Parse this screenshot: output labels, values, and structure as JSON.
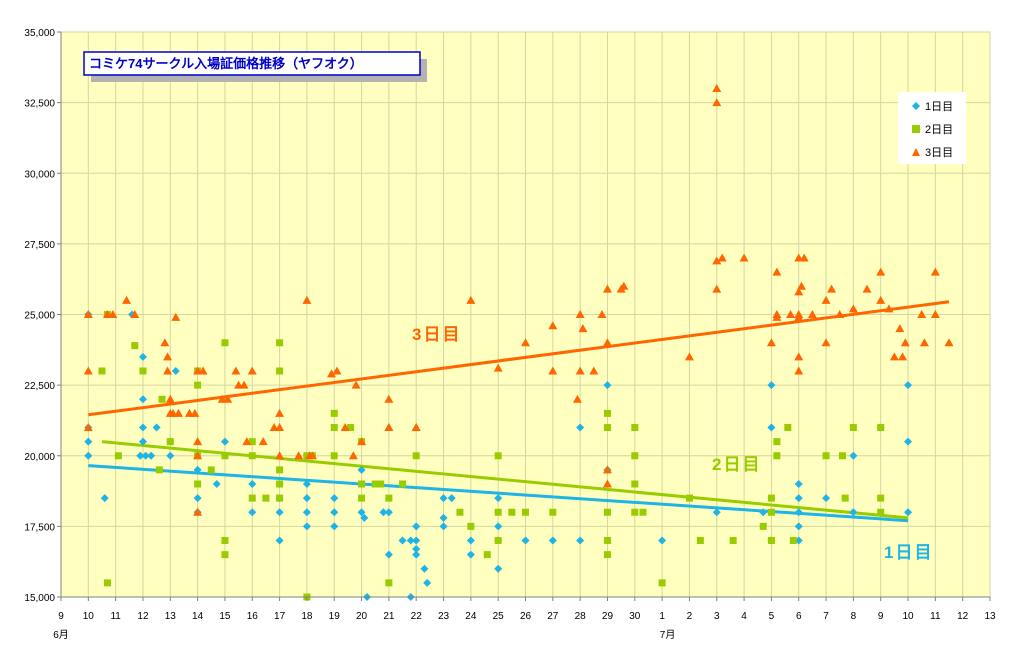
{
  "chart_data": {
    "type": "scatter",
    "title": "コミケ74サークル入場証価格推移（ヤフオク）",
    "ylim": [
      15000,
      35000
    ],
    "yticks": [
      15000,
      17500,
      20000,
      22500,
      25000,
      27500,
      30000,
      32500,
      35000
    ],
    "ytick_labels": [
      "15,000",
      "17,500",
      "20,000",
      "22,500",
      "25,000",
      "27,500",
      "30,000",
      "32,500",
      "35,000"
    ],
    "xlim": [
      0,
      34
    ],
    "xtick_labels": [
      "9",
      "10",
      "11",
      "12",
      "13",
      "14",
      "15",
      "16",
      "17",
      "18",
      "19",
      "20",
      "21",
      "22",
      "23",
      "24",
      "25",
      "26",
      "27",
      "28",
      "29",
      "30",
      "1",
      "2",
      "3",
      "4",
      "5",
      "6",
      "7",
      "8",
      "9",
      "10",
      "11",
      "12",
      "13"
    ],
    "month_labels": [
      {
        "label": "6月",
        "x": 0
      },
      {
        "label": "7月",
        "x": 22.2
      }
    ],
    "grid": true,
    "legend_position": "top-right",
    "series": [
      {
        "name": "1日目",
        "color": "#1EB4E6",
        "marker": "diamond",
        "points": [
          [
            1.0,
            25000
          ],
          [
            1.0,
            21000
          ],
          [
            1.0,
            20500
          ],
          [
            1.0,
            20000
          ],
          [
            1.6,
            18500
          ],
          [
            2.6,
            25000
          ],
          [
            3.0,
            23500
          ],
          [
            3.0,
            22000
          ],
          [
            3.0,
            21000
          ],
          [
            3.0,
            20500
          ],
          [
            2.9,
            20000
          ],
          [
            3.1,
            20000
          ],
          [
            3.3,
            20000
          ],
          [
            3.5,
            21000
          ],
          [
            4.2,
            23000
          ],
          [
            4.0,
            20500
          ],
          [
            4.0,
            20000
          ],
          [
            5.0,
            19500
          ],
          [
            5.0,
            18500
          ],
          [
            5.0,
            18000
          ],
          [
            5.7,
            19000
          ],
          [
            6.0,
            20500
          ],
          [
            7.0,
            19000
          ],
          [
            7.0,
            18000
          ],
          [
            8.0,
            19000
          ],
          [
            8.0,
            18500
          ],
          [
            8.0,
            18000
          ],
          [
            8.0,
            17000
          ],
          [
            9.0,
            20000
          ],
          [
            9.0,
            19000
          ],
          [
            9.0,
            18500
          ],
          [
            9.0,
            18000
          ],
          [
            9.0,
            17500
          ],
          [
            10.0,
            18500
          ],
          [
            10.0,
            18000
          ],
          [
            10.0,
            17500
          ],
          [
            11.0,
            19500
          ],
          [
            11.0,
            18000
          ],
          [
            11.1,
            17800
          ],
          [
            11.2,
            15000
          ],
          [
            11.8,
            18000
          ],
          [
            12.0,
            18000
          ],
          [
            12.0,
            16500
          ],
          [
            12.5,
            17000
          ],
          [
            12.8,
            17000
          ],
          [
            13.0,
            17500
          ],
          [
            13.0,
            17000
          ],
          [
            13.0,
            16700
          ],
          [
            13.0,
            16500
          ],
          [
            12.8,
            15000
          ],
          [
            13.3,
            16000
          ],
          [
            13.4,
            15500
          ],
          [
            14.0,
            18500
          ],
          [
            14.0,
            17800
          ],
          [
            14.0,
            17500
          ],
          [
            14.3,
            18500
          ],
          [
            15.0,
            17000
          ],
          [
            15.0,
            16500
          ],
          [
            16.0,
            18500
          ],
          [
            16.0,
            17500
          ],
          [
            16.0,
            17000
          ],
          [
            16.0,
            16000
          ],
          [
            17.0,
            17000
          ],
          [
            18.0,
            17000
          ],
          [
            19.0,
            21000
          ],
          [
            19.0,
            17000
          ],
          [
            20.0,
            22500
          ],
          [
            20.0,
            19500
          ],
          [
            22.0,
            17000
          ],
          [
            24.0,
            18000
          ],
          [
            25.7,
            18000
          ],
          [
            26.0,
            22500
          ],
          [
            26.0,
            21000
          ],
          [
            26.0,
            17000
          ],
          [
            27.0,
            19000
          ],
          [
            27.0,
            18500
          ],
          [
            27.0,
            18000
          ],
          [
            27.0,
            17500
          ],
          [
            27.0,
            17000
          ],
          [
            28.0,
            18500
          ],
          [
            29.0,
            20000
          ],
          [
            29.0,
            18000
          ],
          [
            30.0,
            21000
          ],
          [
            31.0,
            22500
          ],
          [
            31.0,
            20500
          ],
          [
            31.0,
            18000
          ]
        ]
      },
      {
        "name": "2日目",
        "color": "#99CC00",
        "marker": "square",
        "points": [
          [
            1.5,
            23000
          ],
          [
            1.7,
            25000
          ],
          [
            1.7,
            15500
          ],
          [
            2.1,
            20000
          ],
          [
            2.7,
            23900
          ],
          [
            3.0,
            23000
          ],
          [
            3.7,
            22000
          ],
          [
            3.6,
            19500
          ],
          [
            4.0,
            20500
          ],
          [
            5.0,
            23000
          ],
          [
            5.0,
            22500
          ],
          [
            5.0,
            20000
          ],
          [
            5.0,
            19000
          ],
          [
            5.5,
            19500
          ],
          [
            6.0,
            24000
          ],
          [
            6.0,
            20000
          ],
          [
            6.0,
            17000
          ],
          [
            6.0,
            16500
          ],
          [
            7.0,
            20500
          ],
          [
            7.0,
            20000
          ],
          [
            7.0,
            18500
          ],
          [
            7.5,
            18500
          ],
          [
            8.0,
            24000
          ],
          [
            8.0,
            23000
          ],
          [
            8.0,
            19500
          ],
          [
            8.0,
            19000
          ],
          [
            8.0,
            18500
          ],
          [
            9.0,
            20000
          ],
          [
            9.2,
            20000
          ],
          [
            9.0,
            15000
          ],
          [
            10.0,
            21500
          ],
          [
            10.0,
            21000
          ],
          [
            10.0,
            20000
          ],
          [
            10.6,
            21000
          ],
          [
            11.0,
            20500
          ],
          [
            11.0,
            19000
          ],
          [
            11.0,
            18500
          ],
          [
            11.5,
            19000
          ],
          [
            11.7,
            19000
          ],
          [
            12.0,
            18500
          ],
          [
            12.0,
            15500
          ],
          [
            12.5,
            19000
          ],
          [
            13.0,
            20000
          ],
          [
            14.6,
            18000
          ],
          [
            15.0,
            17500
          ],
          [
            15.6,
            16500
          ],
          [
            16.0,
            20000
          ],
          [
            16.0,
            18000
          ],
          [
            16.0,
            17000
          ],
          [
            16.5,
            18000
          ],
          [
            17.0,
            18000
          ],
          [
            18.0,
            18000
          ],
          [
            20.0,
            21500
          ],
          [
            20.0,
            21000
          ],
          [
            20.0,
            18000
          ],
          [
            20.0,
            17000
          ],
          [
            20.0,
            16500
          ],
          [
            21.0,
            21000
          ],
          [
            21.0,
            20000
          ],
          [
            21.0,
            19000
          ],
          [
            21.0,
            18000
          ],
          [
            21.3,
            18000
          ],
          [
            22.0,
            15500
          ],
          [
            23.0,
            18500
          ],
          [
            23.4,
            17000
          ],
          [
            24.6,
            17000
          ],
          [
            25.7,
            17500
          ],
          [
            26.0,
            18500
          ],
          [
            26.0,
            18000
          ],
          [
            26.0,
            17000
          ],
          [
            26.2,
            20500
          ],
          [
            26.2,
            20000
          ],
          [
            26.6,
            21000
          ],
          [
            26.8,
            17000
          ],
          [
            28.0,
            20000
          ],
          [
            28.6,
            20000
          ],
          [
            28.7,
            18500
          ],
          [
            29.0,
            21000
          ],
          [
            30.0,
            21000
          ],
          [
            30.0,
            18500
          ],
          [
            30.0,
            18000
          ]
        ]
      },
      {
        "name": "3日目",
        "color": "#FF6600",
        "marker": "triangle",
        "points": [
          [
            1.0,
            25000
          ],
          [
            1.0,
            23000
          ],
          [
            1.0,
            21000
          ],
          [
            1.7,
            25000
          ],
          [
            1.9,
            25000
          ],
          [
            2.4,
            25500
          ],
          [
            2.7,
            25000
          ],
          [
            3.8,
            24000
          ],
          [
            3.9,
            23500
          ],
          [
            3.9,
            23000
          ],
          [
            4.0,
            22000
          ],
          [
            4.0,
            21500
          ],
          [
            4.1,
            21500
          ],
          [
            4.2,
            24900
          ],
          [
            4.3,
            21500
          ],
          [
            4.7,
            21500
          ],
          [
            4.9,
            21500
          ],
          [
            5.0,
            23000
          ],
          [
            5.0,
            20500
          ],
          [
            5.0,
            20000
          ],
          [
            5.0,
            18000
          ],
          [
            5.2,
            23000
          ],
          [
            5.9,
            22000
          ],
          [
            6.1,
            22000
          ],
          [
            6.4,
            23000
          ],
          [
            6.5,
            22500
          ],
          [
            6.7,
            22500
          ],
          [
            6.8,
            20500
          ],
          [
            7.0,
            23000
          ],
          [
            7.4,
            20500
          ],
          [
            7.8,
            21000
          ],
          [
            8.0,
            21500
          ],
          [
            8.0,
            21000
          ],
          [
            8.0,
            20000
          ],
          [
            8.7,
            20000
          ],
          [
            9.0,
            25500
          ],
          [
            9.1,
            20000
          ],
          [
            9.2,
            20000
          ],
          [
            9.9,
            22900
          ],
          [
            10.1,
            23000
          ],
          [
            10.4,
            21000
          ],
          [
            10.7,
            20000
          ],
          [
            10.8,
            22500
          ],
          [
            11.0,
            20500
          ],
          [
            12.0,
            21000
          ],
          [
            12.0,
            22000
          ],
          [
            12.0,
            21000
          ],
          [
            13.0,
            21000
          ],
          [
            13.0,
            21000
          ],
          [
            15.0,
            25500
          ],
          [
            16.0,
            23100
          ],
          [
            17.0,
            24000
          ],
          [
            18.0,
            24600
          ],
          [
            18.0,
            23000
          ],
          [
            18.9,
            22000
          ],
          [
            19.1,
            24500
          ],
          [
            19.0,
            25000
          ],
          [
            19.0,
            23000
          ],
          [
            19.5,
            23000
          ],
          [
            19.8,
            25000
          ],
          [
            20.0,
            25900
          ],
          [
            20.0,
            24000
          ],
          [
            20.0,
            19500
          ],
          [
            20.0,
            19000
          ],
          [
            20.5,
            25900
          ],
          [
            20.6,
            26000
          ],
          [
            23.0,
            23500
          ],
          [
            24.0,
            25900
          ],
          [
            24.0,
            26900
          ],
          [
            24.0,
            33000
          ],
          [
            24.0,
            32500
          ],
          [
            24.2,
            27000
          ],
          [
            25.0,
            27000
          ],
          [
            26.0,
            24000
          ],
          [
            26.2,
            26500
          ],
          [
            26.2,
            25000
          ],
          [
            26.2,
            24900
          ],
          [
            26.7,
            25000
          ],
          [
            27.0,
            27000
          ],
          [
            27.2,
            27000
          ],
          [
            27.1,
            26000
          ],
          [
            27.0,
            25800
          ],
          [
            27.0,
            25000
          ],
          [
            27.0,
            24900
          ],
          [
            27.0,
            23500
          ],
          [
            27.0,
            23000
          ],
          [
            27.5,
            25000
          ],
          [
            28.0,
            25500
          ],
          [
            28.0,
            24000
          ],
          [
            28.2,
            25900
          ],
          [
            28.5,
            25000
          ],
          [
            29.0,
            25200
          ],
          [
            29.5,
            25900
          ],
          [
            30.0,
            26500
          ],
          [
            30.0,
            25500
          ],
          [
            30.3,
            25200
          ],
          [
            30.5,
            23500
          ],
          [
            30.7,
            24500
          ],
          [
            30.9,
            24000
          ],
          [
            30.8,
            23500
          ],
          [
            31.5,
            25000
          ],
          [
            31.6,
            24000
          ],
          [
            32.0,
            26500
          ],
          [
            32.0,
            25000
          ],
          [
            32.5,
            24000
          ]
        ]
      }
    ],
    "trendlines": [
      {
        "series": "1日目",
        "label": "1日目",
        "x": [
          1.0,
          31.0
        ],
        "y": [
          19650,
          17700
        ]
      },
      {
        "series": "2日目",
        "label": "2日目",
        "x": [
          1.5,
          31.0
        ],
        "y": [
          20500,
          17800
        ]
      },
      {
        "series": "3日目",
        "label": "3日目",
        "x": [
          1.0,
          32.5
        ],
        "y": [
          21450,
          25450
        ]
      }
    ]
  }
}
